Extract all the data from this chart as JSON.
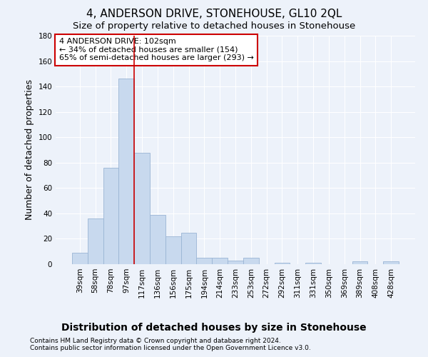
{
  "title": "4, ANDERSON DRIVE, STONEHOUSE, GL10 2QL",
  "subtitle": "Size of property relative to detached houses in Stonehouse",
  "xlabel": "Distribution of detached houses by size in Stonehouse",
  "ylabel": "Number of detached properties",
  "categories": [
    "39sqm",
    "58sqm",
    "78sqm",
    "97sqm",
    "117sqm",
    "136sqm",
    "156sqm",
    "175sqm",
    "194sqm",
    "214sqm",
    "233sqm",
    "253sqm",
    "272sqm",
    "292sqm",
    "311sqm",
    "331sqm",
    "350sqm",
    "369sqm",
    "389sqm",
    "408sqm",
    "428sqm"
  ],
  "values": [
    9,
    36,
    76,
    146,
    88,
    39,
    22,
    25,
    5,
    5,
    3,
    5,
    0,
    1,
    0,
    1,
    0,
    0,
    2,
    0,
    2
  ],
  "bar_color": "#c8d9ee",
  "bar_edge_color": "#9ab5d4",
  "vline_color": "#cc0000",
  "ylim": [
    0,
    180
  ],
  "yticks": [
    0,
    20,
    40,
    60,
    80,
    100,
    120,
    140,
    160,
    180
  ],
  "annotation_text": "4 ANDERSON DRIVE: 102sqm\n← 34% of detached houses are smaller (154)\n65% of semi-detached houses are larger (293) →",
  "annotation_box_color": "#ffffff",
  "annotation_box_edge": "#cc0000",
  "footer1": "Contains HM Land Registry data © Crown copyright and database right 2024.",
  "footer2": "Contains public sector information licensed under the Open Government Licence v3.0.",
  "bg_color": "#edf2fa",
  "grid_color": "#ffffff",
  "title_fontsize": 11,
  "subtitle_fontsize": 9.5,
  "tick_fontsize": 7.5,
  "ylabel_fontsize": 9,
  "xlabel_fontsize": 10,
  "footer_fontsize": 6.5,
  "annot_fontsize": 8
}
